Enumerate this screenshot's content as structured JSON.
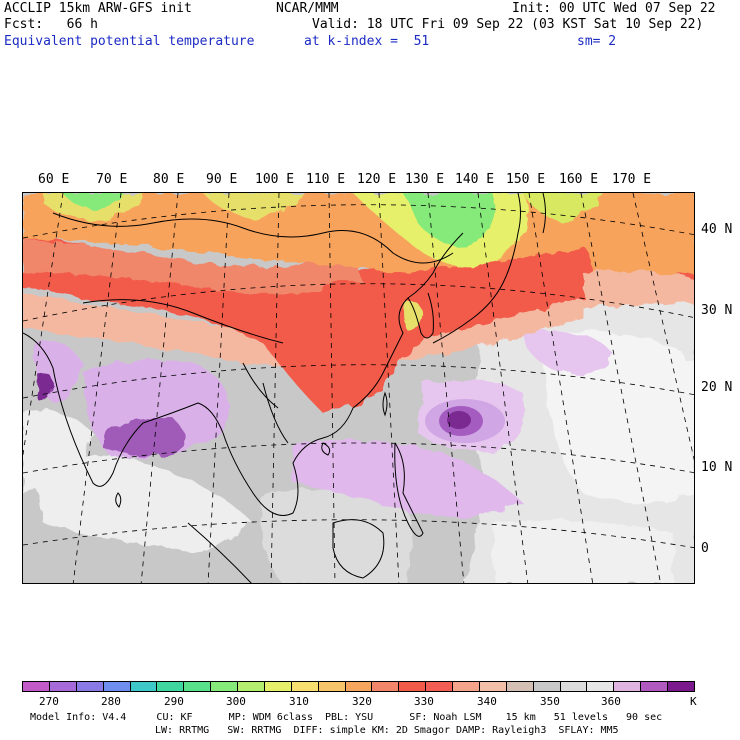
{
  "header": {
    "line1_left": "ACCLIP 15km ARW-GFS init",
    "line1_center": "NCAR/MMM",
    "line1_right": "Init: 00 UTC Wed 07 Sep 22",
    "line2_left": "Fcst:   66 h",
    "line2_right": "Valid: 18 UTC Fri 09 Sep 22 (03 KST Sat 10 Sep 22)",
    "line3_left": "Equivalent potential temperature",
    "line3_center": "at k-index =  51",
    "line3_right": "sm= 2"
  },
  "map": {
    "longitude_labels": [
      "60 E",
      "70 E",
      "80 E",
      "90 E",
      "100 E",
      "110 E",
      "120 E",
      "130 E",
      "140 E",
      "150 E",
      "160 E",
      "170 E"
    ],
    "latitude_labels": [
      "40 N",
      "30 N",
      "20 N",
      "10 N",
      "0"
    ],
    "colors": {
      "bg_gray": "#c8c8c8",
      "light_gray": "#e6e6e6",
      "white": "#f4f4f4",
      "pink": "#e0b4e0",
      "lavender": "#d4a8e8",
      "purple": "#9a46b0",
      "deep_purple": "#6e1a80",
      "red": "#f25a4a",
      "orange_red": "#f0866a",
      "orange": "#f7a35c",
      "salmon": "#f4b8a0",
      "yellow": "#f2e060",
      "yellowgreen": "#d8e860",
      "green": "#86ea7a",
      "tan": "#d9b49a"
    }
  },
  "colorbar": {
    "colors": [
      "#c25ac8",
      "#a66ad9",
      "#8a7ae6",
      "#6f8ff0",
      "#3fc8c8",
      "#40d6a0",
      "#58e08a",
      "#86ea7a",
      "#b4ee6e",
      "#e6f06a",
      "#f7e070",
      "#f7c46a",
      "#f5a65c",
      "#f2866a",
      "#f25a4a",
      "#f25e54",
      "#f4a48a",
      "#f2c0a8",
      "#d4bfb5",
      "#c8c8c8",
      "#dcdcdc",
      "#e6e6e6",
      "#e0b4e0",
      "#b05ac0",
      "#7a1a8c"
    ],
    "labels": [
      "270",
      "280",
      "290",
      "300",
      "310",
      "320",
      "330",
      "340",
      "350",
      "360",
      "K"
    ],
    "unit": "K"
  },
  "footer": {
    "line1": "Model Info: V4.4     CU: KF      MP: WDM 6class  PBL: YSU      SF: Noah LSM    15 km   51 levels   90 sec",
    "line2": "LW: RRTMG   SW: RRTMG  DIFF: simple KM: 2D Smagor DAMP: Rayleigh3  SFLAY: MM5"
  }
}
